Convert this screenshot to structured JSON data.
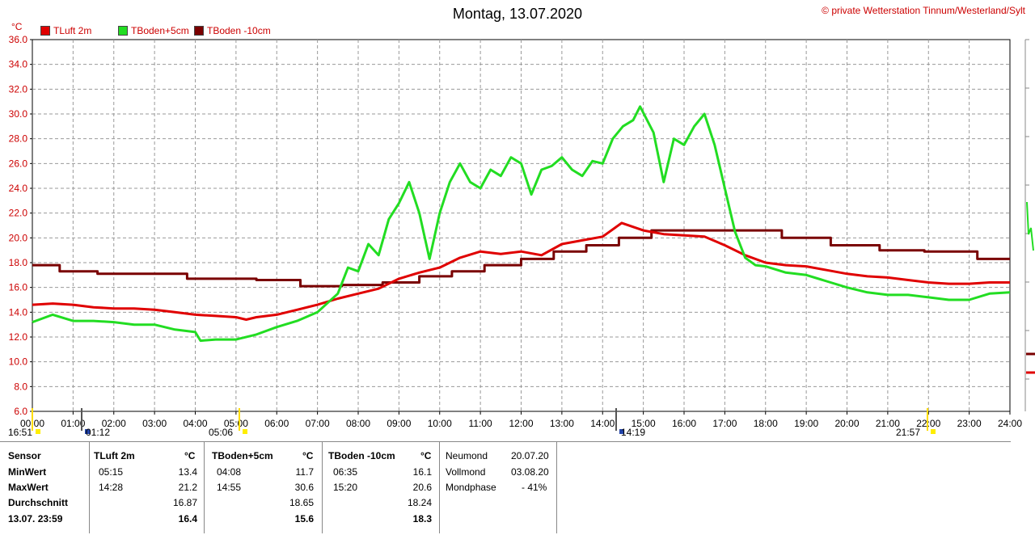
{
  "header": {
    "title": "Montag, 13.07.2020",
    "copyright_symbol": "©",
    "copyright": "private Wetterstation Tinnum/Westerland/Sylt",
    "y_unit": "°C"
  },
  "legend": [
    {
      "label": "TLuft 2m",
      "color": "#e00000"
    },
    {
      "label": "TBoden+5cm",
      "color": "#22dd22"
    },
    {
      "label": "TBoden -10cm",
      "color": "#7a0000"
    }
  ],
  "chart_data": {
    "type": "line",
    "title": "Montag, 13.07.2020",
    "xlabel": "",
    "ylabel": "°C",
    "xlim": [
      0,
      24
    ],
    "ylim": [
      6,
      36
    ],
    "grid": true,
    "y_ticks": [
      "6.0",
      "8.0",
      "10.0",
      "12.0",
      "14.0",
      "16.0",
      "18.0",
      "20.0",
      "22.0",
      "24.0",
      "26.0",
      "28.0",
      "30.0",
      "32.0",
      "34.0",
      "36.0"
    ],
    "x_ticks": [
      "00:00",
      "01:00",
      "02:00",
      "03:00",
      "04:00",
      "05:00",
      "06:00",
      "07:00",
      "08:00",
      "09:00",
      "10:00",
      "11:00",
      "12:00",
      "13:00",
      "14:00",
      "15:00",
      "16:00",
      "17:00",
      "18:00",
      "19:00",
      "20:00",
      "21:00",
      "22:00",
      "23:00",
      "24:00"
    ],
    "series": [
      {
        "name": "TLuft 2m",
        "color": "#e00000",
        "x": [
          0,
          0.5,
          1,
          1.5,
          2,
          2.5,
          3,
          3.5,
          4,
          4.5,
          5,
          5.25,
          5.5,
          6,
          6.5,
          7,
          7.5,
          8,
          8.5,
          9,
          9.5,
          10,
          10.5,
          11,
          11.5,
          12,
          12.5,
          13,
          13.5,
          14,
          14.47,
          15,
          15.5,
          16,
          16.5,
          17,
          17.5,
          18,
          18.5,
          19,
          19.5,
          20,
          20.5,
          21,
          21.5,
          22,
          22.5,
          23,
          23.5,
          24
        ],
        "y": [
          14.6,
          14.7,
          14.6,
          14.4,
          14.3,
          14.3,
          14.2,
          14.0,
          13.8,
          13.7,
          13.6,
          13.4,
          13.6,
          13.8,
          14.2,
          14.6,
          15.1,
          15.5,
          15.9,
          16.7,
          17.2,
          17.6,
          18.4,
          18.9,
          18.7,
          18.9,
          18.6,
          19.5,
          19.8,
          20.1,
          21.2,
          20.6,
          20.3,
          20.2,
          20.1,
          19.4,
          18.6,
          18.0,
          17.8,
          17.7,
          17.4,
          17.1,
          16.9,
          16.8,
          16.6,
          16.4,
          16.3,
          16.3,
          16.4,
          16.4
        ]
      },
      {
        "name": "TBoden+5cm",
        "color": "#22dd22",
        "x": [
          0,
          0.5,
          1,
          1.5,
          2,
          2.5,
          3,
          3.5,
          4,
          4.13,
          4.5,
          5,
          5.5,
          6,
          6.5,
          7,
          7.5,
          7.75,
          8,
          8.25,
          8.5,
          8.75,
          9,
          9.25,
          9.5,
          9.75,
          10,
          10.25,
          10.5,
          10.75,
          11,
          11.25,
          11.5,
          11.75,
          12,
          12.25,
          12.5,
          12.75,
          13,
          13.25,
          13.5,
          13.75,
          14,
          14.25,
          14.5,
          14.75,
          14.92,
          15.25,
          15.5,
          15.75,
          16,
          16.25,
          16.5,
          16.75,
          17,
          17.25,
          17.5,
          17.75,
          18,
          18.5,
          19,
          19.5,
          20,
          20.5,
          21,
          21.5,
          22,
          22.5,
          23,
          23.5,
          24
        ],
        "y": [
          13.2,
          13.8,
          13.3,
          13.3,
          13.2,
          13.0,
          13.0,
          12.6,
          12.4,
          11.7,
          11.8,
          11.8,
          12.2,
          12.8,
          13.3,
          14.0,
          15.5,
          17.6,
          17.3,
          19.5,
          18.6,
          21.5,
          22.8,
          24.5,
          22.0,
          18.3,
          22.0,
          24.5,
          26.0,
          24.5,
          24.0,
          25.5,
          25.0,
          26.5,
          26.0,
          23.5,
          25.5,
          25.8,
          26.5,
          25.5,
          25.0,
          26.2,
          26.0,
          28.0,
          29.0,
          29.5,
          30.6,
          28.5,
          24.5,
          28.0,
          27.5,
          29.0,
          30.0,
          27.5,
          24.0,
          20.5,
          18.4,
          17.8,
          17.7,
          17.2,
          17.0,
          16.5,
          16.0,
          15.6,
          15.4,
          15.4,
          15.2,
          15.0,
          15.0,
          15.5,
          15.6
        ]
      },
      {
        "name": "TBoden -10cm",
        "color": "#7a0000",
        "x": [
          0,
          0.67,
          0.67,
          1.6,
          1.6,
          3.8,
          3.8,
          5.5,
          5.5,
          6.58,
          6.58,
          7.6,
          7.6,
          8.6,
          8.6,
          9.5,
          9.5,
          10.3,
          10.3,
          11.1,
          11.1,
          12.0,
          12.0,
          12.8,
          12.8,
          13.6,
          13.6,
          14.4,
          14.4,
          15.2,
          15.2,
          16.2,
          16.2,
          17.3,
          17.3,
          18.4,
          18.4,
          19.6,
          19.6,
          20.8,
          20.8,
          21.9,
          21.9,
          23.2,
          23.2,
          24
        ],
        "y": [
          17.8,
          17.8,
          17.3,
          17.3,
          17.1,
          17.1,
          16.7,
          16.7,
          16.6,
          16.6,
          16.1,
          16.1,
          16.2,
          16.2,
          16.4,
          16.4,
          16.9,
          16.9,
          17.3,
          17.3,
          17.8,
          17.8,
          18.3,
          18.3,
          18.9,
          18.9,
          19.4,
          19.4,
          20.0,
          20.0,
          20.6,
          20.6,
          20.6,
          20.6,
          20.6,
          20.6,
          20.0,
          20.0,
          19.4,
          19.4,
          19.0,
          19.0,
          18.9,
          18.9,
          18.3,
          18.3
        ]
      }
    ]
  },
  "sun_moon_markers": [
    {
      "time": "16:51"
    },
    {
      "time": "01:12"
    },
    {
      "time": "05:06"
    },
    {
      "time": "14:19"
    },
    {
      "time": "21:57"
    }
  ],
  "stats": {
    "headers": {
      "sensor": "Sensor",
      "s1": "TLuft 2m",
      "s2": "TBoden+5cm",
      "s3": "TBoden -10cm",
      "unit": "°C"
    },
    "row_labels": {
      "min": "MinWert",
      "max": "MaxWert",
      "avg": "Durchschnitt",
      "cur": "13.07. 23:59"
    },
    "TLuft": {
      "min_time": "05:15",
      "min": "13.4",
      "max_time": "14:28",
      "max": "21.2",
      "avg": "16.87",
      "cur": "16.4"
    },
    "TBoden5": {
      "min_time": "04:08",
      "min": "11.7",
      "max_time": "14:55",
      "max": "30.6",
      "avg": "18.65",
      "cur": "15.6"
    },
    "TBoden10": {
      "min_time": "06:35",
      "min": "16.1",
      "max_time": "15:20",
      "max": "20.6",
      "avg": "18.24",
      "cur": "18.3"
    },
    "moon": {
      "neumond_label": "Neumond",
      "neumond": "20.07.20",
      "vollmond_label": "Vollmond",
      "vollmond": "03.08.20",
      "phase_label": "Mondphase",
      "phase": "- 41%"
    }
  }
}
